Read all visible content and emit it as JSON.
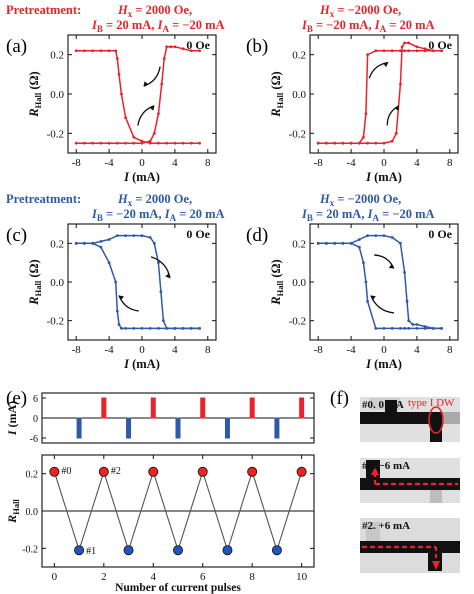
{
  "colors": {
    "red": "#e8242a",
    "blue": "#2f5aa8",
    "black": "#111111",
    "dot_red": "#ee2222",
    "dot_blue": "#2255bb"
  },
  "panels": {
    "a": {
      "letter": "(a)",
      "pretreat": "Pretreatment:",
      "cond1_H": "H",
      "cond1_Hsub": "x",
      "cond1_rest": " = 2000 Oe,",
      "cond2": [
        [
          "I",
          "B",
          " = 20 mA, "
        ],
        [
          "I",
          "A",
          " = −20 mA"
        ]
      ],
      "field": "0 Oe",
      "color_key": "red"
    },
    "b": {
      "letter": "(b)",
      "cond1_H": "H",
      "cond1_Hsub": "x",
      "cond1_rest": " = −2000 Oe,",
      "cond2": [
        [
          "I",
          "B",
          " = −20 mA, "
        ],
        [
          "I",
          "A",
          " = 20 mA"
        ]
      ],
      "field": "0 Oe",
      "color_key": "red"
    },
    "c": {
      "letter": "(c)",
      "pretreat": "Pretreatment:",
      "cond1_H": "H",
      "cond1_Hsub": "x",
      "cond1_rest": " = 2000 Oe,",
      "cond2": [
        [
          "I",
          "B",
          " = −20 mA, "
        ],
        [
          "I",
          "A",
          " = 20 mA"
        ]
      ],
      "field": "0 Oe",
      "color_key": "blue"
    },
    "d": {
      "letter": "(d)",
      "cond1_H": "H",
      "cond1_Hsub": "x",
      "cond1_rest": " = −2000 Oe,",
      "cond2": [
        [
          "I",
          "B",
          " = 20 mA, "
        ],
        [
          "I",
          "A",
          " = −20 mA"
        ]
      ],
      "field": "0 Oe",
      "color_key": "blue"
    },
    "e": {
      "letter": "(e)"
    },
    "f": {
      "letter": "(f)",
      "labels": [
        "#0. 0 mA",
        "#1. −6 mA",
        "#2. +6 mA"
      ],
      "dw_label": "type I DW"
    }
  },
  "chart_data": [
    {
      "id": "a",
      "type": "line",
      "xlabel_main": "I",
      "xlabel_unit": " (mA)",
      "ylabel_main": "R",
      "ylabel_sub": "Hall",
      "ylabel_unit": " (Ω)",
      "xlim": [
        -9,
        9
      ],
      "ylim": [
        -0.3,
        0.3
      ],
      "xticks": [
        -8,
        -4,
        0,
        4,
        8
      ],
      "yticks": [
        0.2,
        0.0,
        -0.2
      ],
      "yticklabels": [
        "0.2",
        "0.0",
        "-0.2"
      ],
      "upper": {
        "x": [
          -8,
          -7,
          -6,
          -5,
          -4,
          -3.2,
          -3.0,
          -2.8,
          -2.5,
          -2,
          -1,
          0,
          1,
          2,
          3,
          4,
          5,
          6,
          7
        ],
        "y": [
          0.22,
          0.22,
          0.22,
          0.22,
          0.22,
          0.22,
          0.18,
          0.1,
          0.0,
          -0.12,
          -0.22,
          -0.24,
          -0.25,
          -0.25,
          -0.25,
          -0.25,
          -0.25,
          -0.25,
          -0.25
        ]
      },
      "lower": {
        "x": [
          -8,
          -7,
          -6,
          -5,
          -4,
          -3,
          -2,
          -1,
          0,
          1,
          1.5,
          2,
          2.4,
          2.7,
          3,
          3.5,
          4,
          5,
          6,
          7
        ],
        "y": [
          -0.25,
          -0.25,
          -0.25,
          -0.25,
          -0.25,
          -0.25,
          -0.25,
          -0.25,
          -0.25,
          -0.24,
          -0.2,
          -0.1,
          0.05,
          0.18,
          0.24,
          0.24,
          0.24,
          0.23,
          0.22,
          0.22
        ]
      },
      "arrows": "ccw"
    },
    {
      "id": "b",
      "type": "line",
      "xlabel_main": "I",
      "xlabel_unit": " (mA)",
      "ylabel_main": "R",
      "ylabel_sub": "Hall",
      "ylabel_unit": " (Ω)",
      "xlim": [
        -9,
        9
      ],
      "ylim": [
        -0.3,
        0.3
      ],
      "xticks": [
        -8,
        -4,
        0,
        4,
        8
      ],
      "yticks": [
        0.2,
        0.0,
        -0.2
      ],
      "yticklabels": [
        "0.2",
        "0.0",
        "-0.2"
      ],
      "upper": {
        "x": [
          -8,
          -7,
          -6,
          -5,
          -4,
          -3,
          -2.5,
          -2.2,
          -2,
          -1,
          0,
          1,
          2,
          2.5,
          3,
          4,
          5,
          6,
          7
        ],
        "y": [
          -0.25,
          -0.25,
          -0.25,
          -0.25,
          -0.25,
          -0.25,
          -0.22,
          -0.1,
          0.2,
          0.22,
          0.22,
          0.22,
          0.22,
          0.22,
          0.22,
          0.22,
          0.22,
          0.22,
          0.22
        ]
      },
      "lower": {
        "x": [
          -8,
          -7,
          -6,
          -5,
          -4,
          -3,
          -2,
          -1,
          0,
          1,
          1.5,
          2,
          2.2,
          2.5,
          3,
          4,
          5,
          6,
          7
        ],
        "y": [
          -0.25,
          -0.25,
          -0.25,
          -0.25,
          -0.25,
          -0.25,
          -0.25,
          -0.25,
          -0.25,
          -0.24,
          -0.2,
          0.05,
          0.24,
          0.26,
          0.26,
          0.24,
          0.23,
          0.22,
          0.22
        ]
      },
      "arrows": "cw"
    },
    {
      "id": "c",
      "type": "line",
      "xlabel_main": "I",
      "xlabel_unit": " (mA)",
      "ylabel_main": "R",
      "ylabel_sub": "Hall",
      "ylabel_unit": " (Ω)",
      "xlim": [
        -9,
        9
      ],
      "ylim": [
        -0.3,
        0.3
      ],
      "xticks": [
        -8,
        -4,
        0,
        4,
        8
      ],
      "yticks": [
        0.2,
        0.0,
        -0.2
      ],
      "yticklabels": [
        "0.2",
        "0.0",
        "-0.2"
      ],
      "upper": {
        "x": [
          -8,
          -7,
          -6,
          -5,
          -4,
          -3,
          -2,
          -1,
          0,
          1,
          1.5,
          2,
          2.3,
          2.6,
          3,
          4,
          5,
          6,
          7
        ],
        "y": [
          0.2,
          0.2,
          0.2,
          0.21,
          0.22,
          0.24,
          0.24,
          0.24,
          0.24,
          0.23,
          0.2,
          0.1,
          -0.05,
          -0.2,
          -0.24,
          -0.24,
          -0.24,
          -0.24,
          -0.24
        ]
      },
      "lower": {
        "x": [
          -8,
          -7,
          -6,
          -5,
          -4,
          -3.2,
          -3.0,
          -2.8,
          -2.5,
          -2,
          -1,
          0,
          1,
          2,
          3,
          4,
          5,
          6,
          7
        ],
        "y": [
          0.2,
          0.2,
          0.2,
          0.18,
          0.1,
          0.0,
          -0.15,
          -0.22,
          -0.24,
          -0.24,
          -0.24,
          -0.24,
          -0.24,
          -0.24,
          -0.24,
          -0.24,
          -0.24,
          -0.24,
          -0.24
        ]
      },
      "arrows": "cw"
    },
    {
      "id": "d",
      "type": "line",
      "xlabel_main": "I",
      "xlabel_unit": " (mA)",
      "ylabel_main": "R",
      "ylabel_sub": "Hall",
      "ylabel_unit": " (Ω)",
      "xlim": [
        -9,
        9
      ],
      "ylim": [
        -0.3,
        0.3
      ],
      "xticks": [
        -8,
        -4,
        0,
        4,
        8
      ],
      "yticks": [
        0.2,
        0.0,
        -0.2
      ],
      "yticklabels": [
        "0.2",
        "0.0",
        "-0.2"
      ],
      "upper": {
        "x": [
          -8,
          -7,
          -6,
          -5,
          -4,
          -3,
          -2.5,
          -2.2,
          -2,
          -1,
          0,
          1,
          2,
          2.5,
          3,
          4,
          5,
          6,
          7
        ],
        "y": [
          0.2,
          0.2,
          0.2,
          0.2,
          0.2,
          0.18,
          0.1,
          0.0,
          -0.1,
          -0.24,
          -0.24,
          -0.24,
          -0.24,
          -0.24,
          -0.24,
          -0.24,
          -0.24,
          -0.24,
          -0.24
        ]
      },
      "lower": {
        "x": [
          -8,
          -7,
          -6,
          -5,
          -4,
          -3,
          -2,
          -1,
          0,
          1,
          2,
          2.5,
          2.8,
          3,
          3.5,
          4,
          5,
          6,
          7
        ],
        "y": [
          0.2,
          0.2,
          0.2,
          0.2,
          0.2,
          0.22,
          0.24,
          0.24,
          0.24,
          0.23,
          0.2,
          0.05,
          -0.1,
          -0.2,
          -0.22,
          -0.22,
          -0.23,
          -0.24,
          -0.24
        ]
      },
      "arrows": "cw"
    },
    {
      "id": "e-top",
      "type": "bar",
      "ylabel_main": "I",
      "ylabel_unit": " (mA)",
      "xlim": [
        -0.5,
        10.5
      ],
      "ylim": [
        -7.5,
        7.5
      ],
      "yticks": [
        6,
        0,
        -6
      ],
      "yticklabels": [
        "6",
        "0",
        "-6"
      ],
      "pulses": [
        {
          "x": 1,
          "v": -6
        },
        {
          "x": 2,
          "v": 6
        },
        {
          "x": 3,
          "v": -6
        },
        {
          "x": 4,
          "v": 6
        },
        {
          "x": 5,
          "v": -6
        },
        {
          "x": 6,
          "v": 6
        },
        {
          "x": 7,
          "v": -6
        },
        {
          "x": 8,
          "v": 6
        },
        {
          "x": 9,
          "v": -6
        },
        {
          "x": 10,
          "v": 6
        }
      ]
    },
    {
      "id": "e-bottom",
      "type": "line",
      "xlabel": "Number of current pulses",
      "ylabel_main": "R",
      "ylabel_sub": "Hall",
      "xlim": [
        -0.5,
        10.5
      ],
      "ylim": [
        -0.3,
        0.3
      ],
      "xticks": [
        0,
        2,
        4,
        6,
        8,
        10
      ],
      "yticks": [
        0.2,
        0.0,
        -0.2
      ],
      "yticklabels": [
        "0.2",
        "0.0",
        "-0.2"
      ],
      "x": [
        0,
        1,
        2,
        3,
        4,
        5,
        6,
        7,
        8,
        9,
        10
      ],
      "y": [
        0.21,
        -0.21,
        0.21,
        -0.21,
        0.21,
        -0.21,
        0.21,
        -0.21,
        0.21,
        -0.21,
        0.21
      ],
      "point_labels": [
        {
          "i": 0,
          "text": "#0"
        },
        {
          "i": 1,
          "text": "#1"
        },
        {
          "i": 2,
          "text": "#2"
        }
      ]
    }
  ]
}
